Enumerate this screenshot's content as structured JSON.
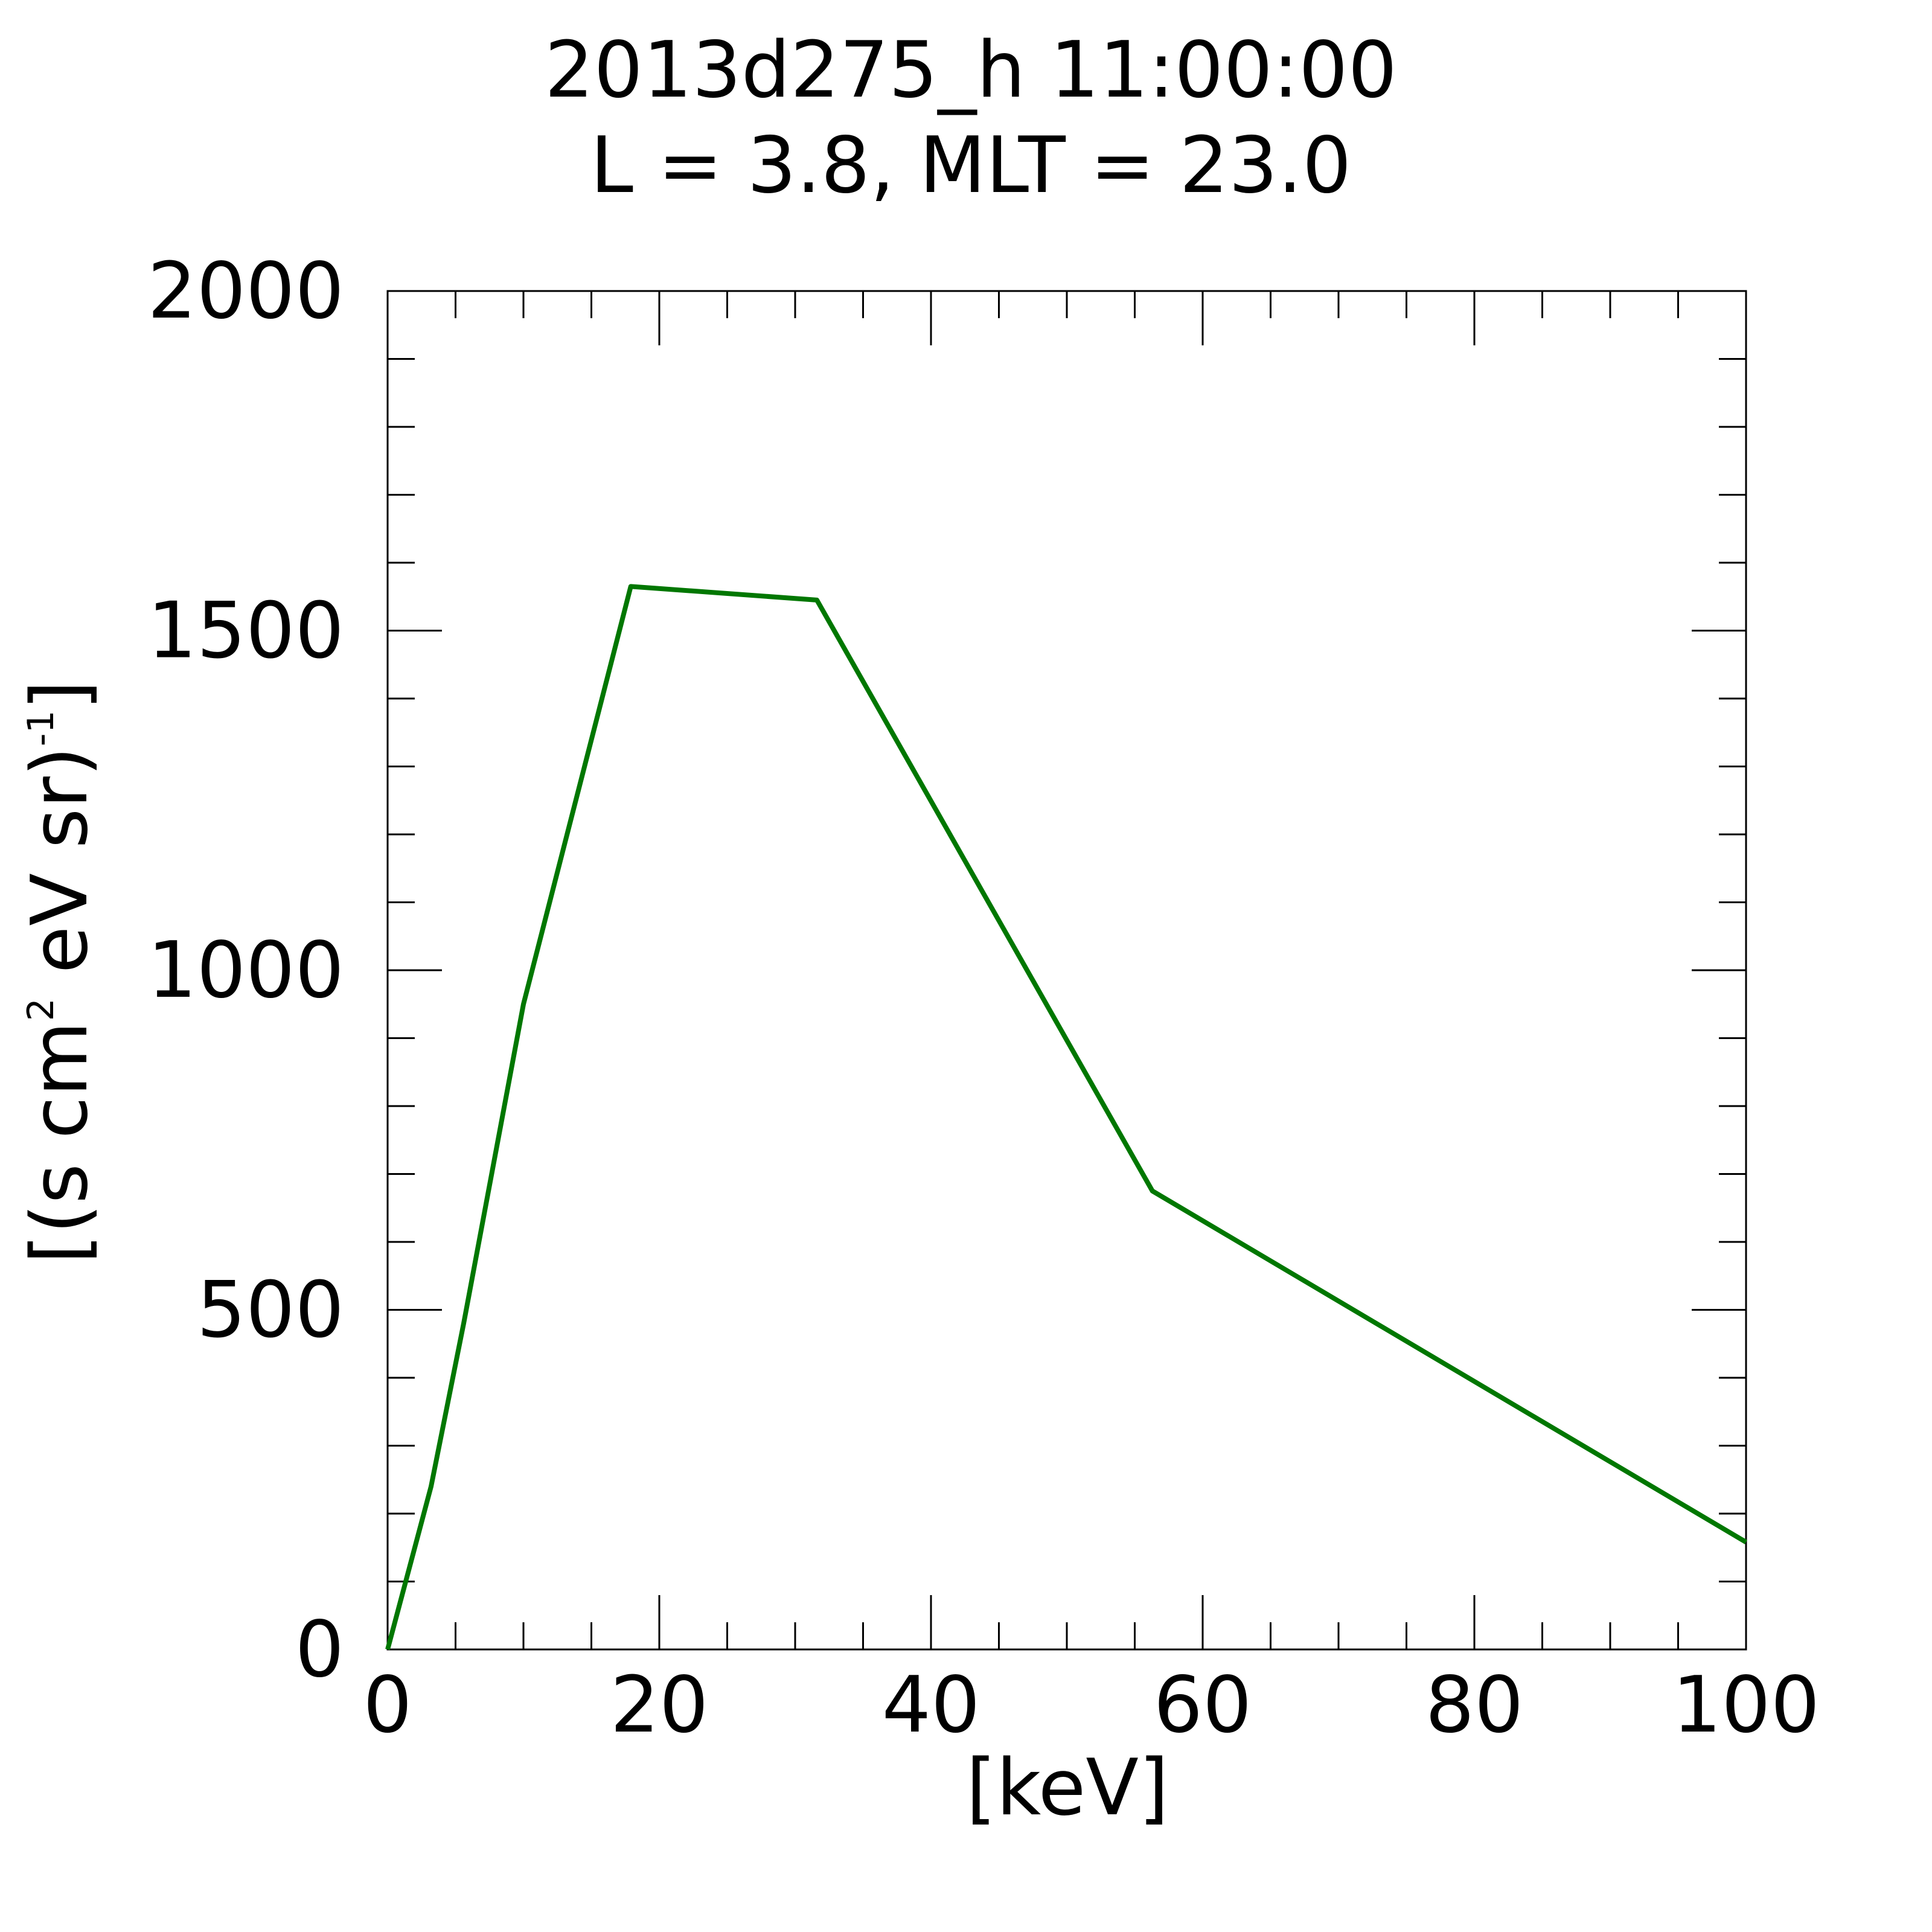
{
  "chart_data": {
    "type": "line",
    "title": "2013d275_h  11:00:00",
    "subtitle": "L = 3.8, MLT = 23.0",
    "x_label": "[keV]",
    "y_label_parts": [
      "[(s cm",
      "2",
      " eV sr)",
      "-1",
      "]"
    ],
    "x": [
      0,
      3.2,
      5.6,
      10.0,
      17.9,
      31.6,
      56.3,
      100
    ],
    "series": [
      {
        "color": "#007700",
        "values": [
          0,
          240,
          480,
          950,
          1565,
          1545,
          675,
          158
        ]
      }
    ],
    "xlim": [
      0,
      100
    ],
    "xticks": [
      0,
      20,
      40,
      60,
      80,
      100
    ],
    "ylim": [
      0,
      2000
    ],
    "yticks": [
      0,
      500,
      1000,
      1500,
      2000
    ],
    "grid": false
  }
}
